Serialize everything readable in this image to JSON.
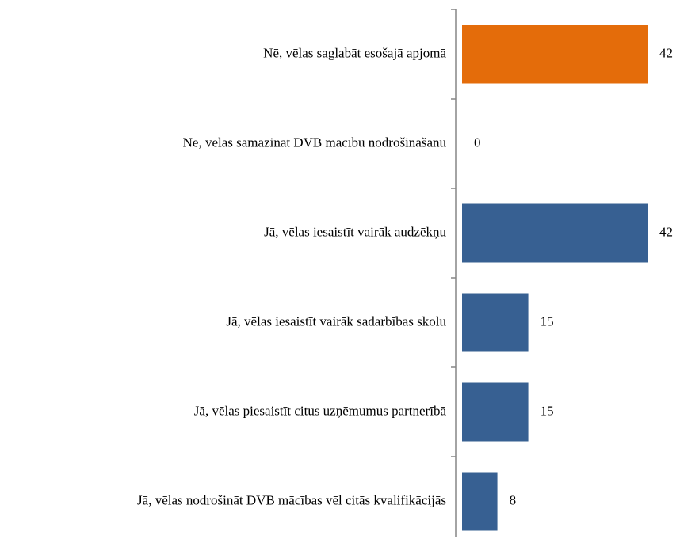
{
  "chart_data": {
    "type": "hbar",
    "categories": [
      "Nē, vēlas saglabāt esošajā apjomā",
      "Nē, vēlas samazināt DVB mācību nodrošināšanu",
      "Jā, vēlas iesaistīt vairāk audzēkņu",
      "Jā, vēlas iesaistīt vairāk sadarbības skolu",
      "Jā, vēlas piesaistīt citus uzņēmumus partnerībā",
      "Jā, vēlas nodrošināt DVB mācības vēl citās kvalifikācijās"
    ],
    "values": [
      42,
      0,
      42,
      15,
      15,
      8
    ],
    "colors": [
      "#e46c0a",
      "#376092",
      "#376092",
      "#376092",
      "#376092",
      "#376092"
    ]
  }
}
